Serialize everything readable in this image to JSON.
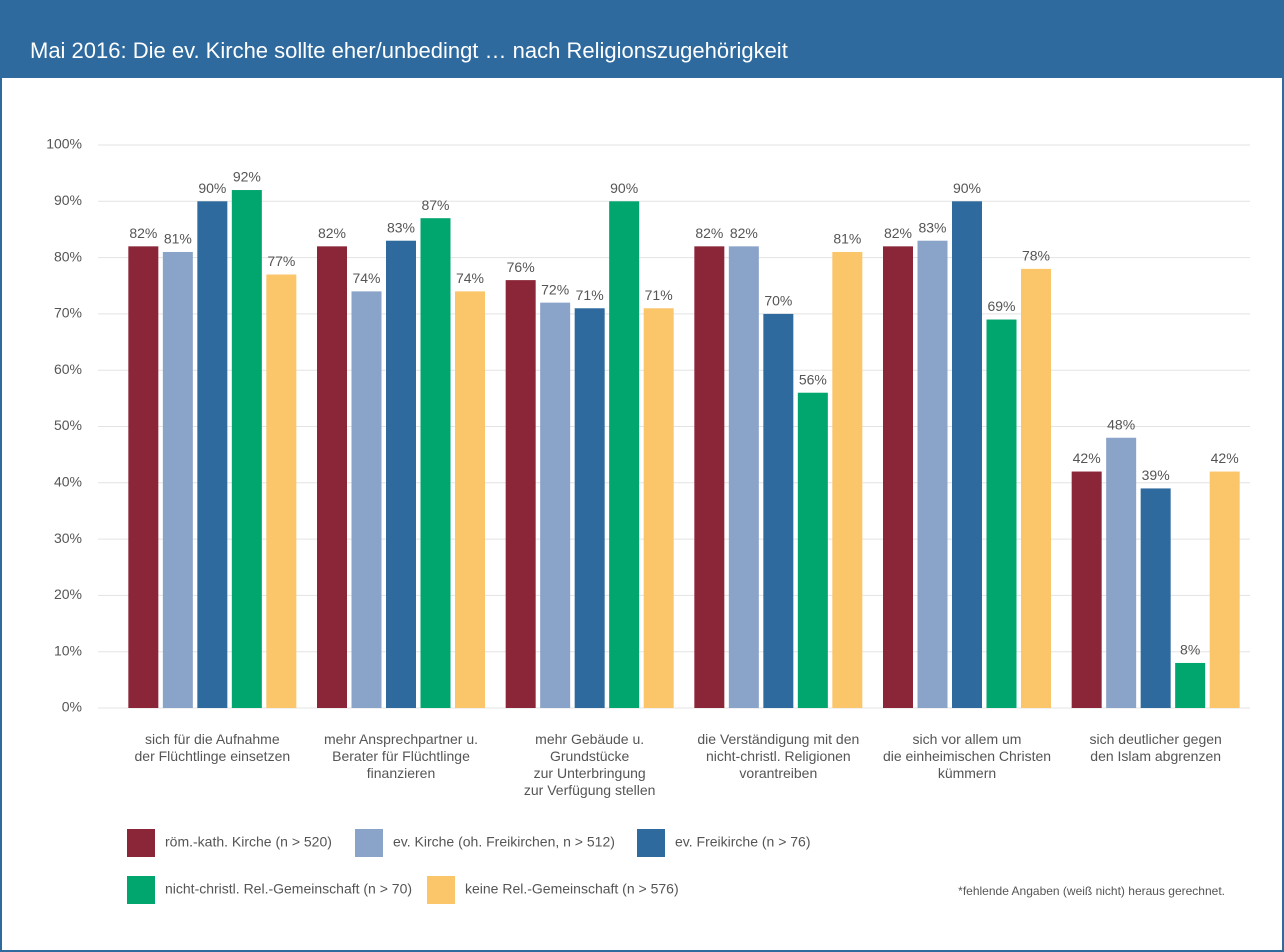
{
  "chart_data": {
    "type": "bar",
    "title": "Mai 2016: Die ev. Kirche sollte eher/unbedingt … nach Religionszugehörigkeit",
    "categories": [
      [
        "sich für die Aufnahme",
        "der Flüchtlinge einsetzen"
      ],
      [
        "mehr Ansprechpartner u.",
        "Berater für Flüchtlinge",
        "finanzieren"
      ],
      [
        "mehr Gebäude u.",
        "Grundstücke",
        "zur Unterbringung",
        "zur Verfügung stellen"
      ],
      [
        "die Verständigung mit den",
        "nicht-christl. Religionen",
        "vorantreiben"
      ],
      [
        "sich vor allem um",
        "die einheimischen Christen",
        "kümmern"
      ],
      [
        "sich deutlicher gegen",
        "den Islam abgrenzen"
      ]
    ],
    "series": [
      {
        "name": "röm.-kath. Kirche (n > 520)",
        "color": "#8b2638",
        "values": [
          82,
          82,
          76,
          82,
          82,
          42
        ],
        "value_labels": [
          "82%",
          "82%",
          "76%",
          "82%",
          "82%",
          "42%"
        ]
      },
      {
        "name": "ev. Kirche (oh. Freikirchen, n > 512)",
        "color": "#8aa3c8",
        "values": [
          81,
          74,
          72,
          82,
          83,
          48
        ],
        "value_labels": [
          "81%",
          "74%",
          "72%",
          "82%",
          "83%",
          "48%"
        ]
      },
      {
        "name": "ev. Freikirche (n > 76)",
        "color": "#2e6a9e",
        "values": [
          90,
          83,
          71,
          70,
          90,
          39
        ],
        "value_labels": [
          "90%",
          "83%",
          "71%",
          "70%",
          "90%",
          "39%"
        ]
      },
      {
        "name": "nicht-christl. Rel.-Gemeinschaft (n > 70)",
        "color": "#00a66e",
        "values": [
          92,
          87,
          90,
          56,
          69,
          8
        ],
        "value_labels": [
          "92%",
          "87%",
          "90%",
          "56%",
          "69%",
          "8%"
        ]
      },
      {
        "name": "keine Rel.-Gemeinschaft (n > 576)",
        "color": "#fbc56a",
        "values": [
          77,
          74,
          71,
          81,
          78,
          42
        ],
        "value_labels": [
          "77%",
          "74%",
          "71%",
          "81%",
          "78%",
          "42%"
        ]
      }
    ],
    "ylim": [
      0,
      100
    ],
    "yticks": [
      {
        "value": 0,
        "label": "0%"
      },
      {
        "value": 10,
        "label": "10%"
      },
      {
        "value": 20,
        "label": "20%"
      },
      {
        "value": 30,
        "label": "30%"
      },
      {
        "value": 40,
        "label": "40%"
      },
      {
        "value": 50,
        "label": "50%"
      },
      {
        "value": 60,
        "label": "60%"
      },
      {
        "value": 70,
        "label": "70%"
      },
      {
        "value": 80,
        "label": "80%"
      },
      {
        "value": 90,
        "label": "90%"
      },
      {
        "value": 100,
        "label": "100%"
      }
    ],
    "grid": true,
    "note": "*fehlende Angaben (weiß nicht) heraus gerechnet."
  }
}
